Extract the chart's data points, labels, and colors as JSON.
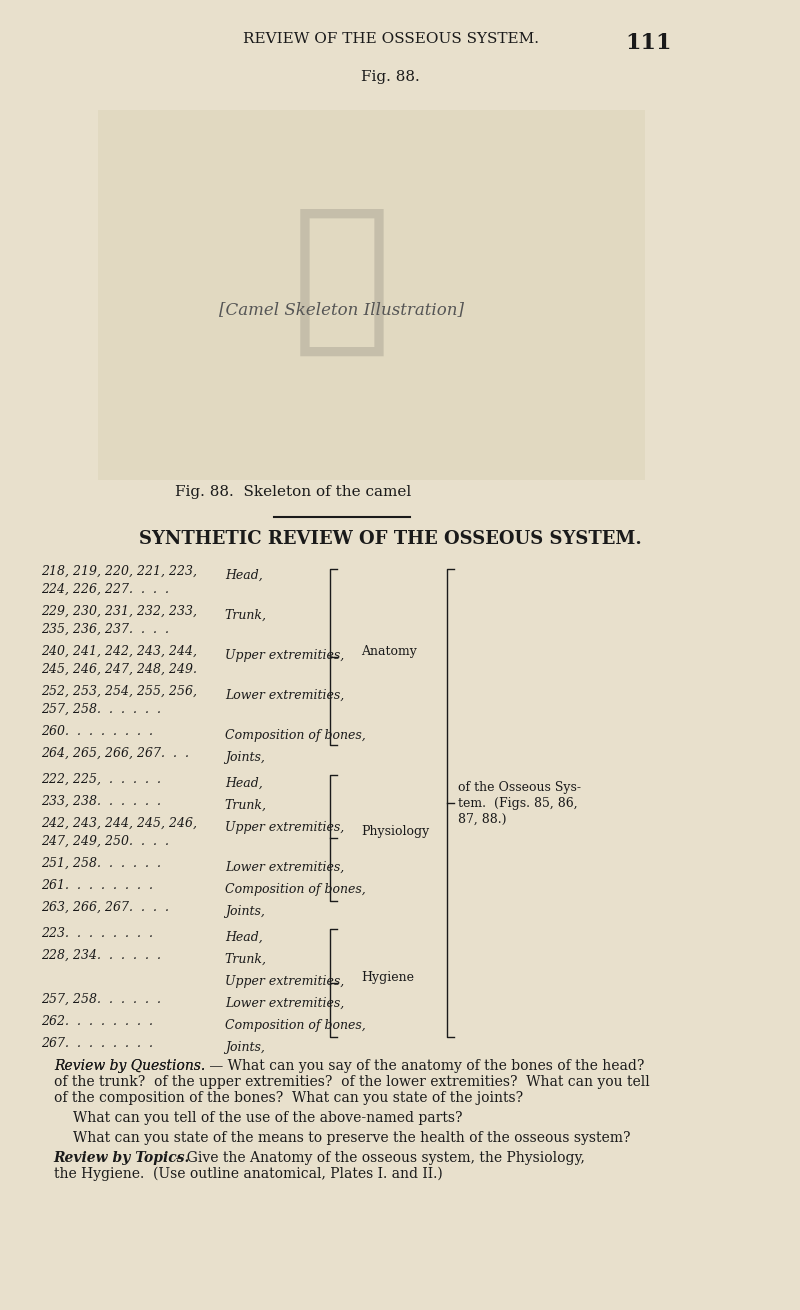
{
  "bg_color": "#e8e0cc",
  "header_text": "REVIEW OF THE OSSEOUS SYSTEM.",
  "page_num": "111",
  "fig_label": "Fig. 88.",
  "fig_caption": "Fig. 88.  Skeleton of the camel",
  "section_title": "SYNTHETIC REVIEW OF THE OSSEOUS SYSTEM.",
  "text_color": "#1a1a1a",
  "anatomy_rows": [
    [
      "218, 219, 220, 221, 223,",
      "224, 226, 227.  .  .  .",
      "Head,"
    ],
    [
      "229, 230, 231, 232, 233,",
      "235, 236, 237.  .  .  .",
      "Trunk,"
    ],
    [
      "240, 241, 242, 243, 244,",
      "245, 246, 247, 248, 249.",
      "Upper extremities,"
    ],
    [
      "252, 253, 254, 255, 256,",
      "257, 258.  .  .  .  .  .",
      "Lower extremities,"
    ],
    [
      "260.  .  .  .  .  .  .  .",
      "",
      "Composition of bones,"
    ],
    [
      "264, 265, 266, 267.  .  .",
      "",
      "Joints,"
    ]
  ],
  "physiology_rows": [
    [
      "222, 225,  .  .  .  .  .",
      "",
      "Head,"
    ],
    [
      "233, 238.  .  .  .  .  .",
      "",
      "Trunk,"
    ],
    [
      "242, 243, 244, 245, 246,",
      "247, 249, 250.  .  .  .",
      "Upper extremities,"
    ],
    [
      "251, 258.  .  .  .  .  .",
      "",
      "Lower extremities,"
    ],
    [
      "261.  .  .  .  .  .  .  .",
      "",
      "Composition of bones,"
    ],
    [
      "263, 266, 267.  .  .  .",
      "",
      "Joints,"
    ]
  ],
  "hygiene_rows": [
    [
      "223.  .  .  .  .  .  .  .",
      "",
      "Head,"
    ],
    [
      "228, 234.  .  .  .  .  .",
      "",
      "Trunk,"
    ],
    [
      "",
      "",
      "Upper extremities,"
    ],
    [
      "257, 258.  .  .  .  .  .",
      "",
      "Lower extremities,"
    ],
    [
      "262.  .  .  .  .  .  .  .",
      "",
      "Composition of bones,"
    ],
    [
      "267.  .  .  .  .  .  .  .",
      "",
      "Joints,"
    ]
  ],
  "right_label1": "of the Osseous Sys-",
  "right_label2": "tem.  (Figs. 85, 86,",
  "right_label3": "87, 88.)",
  "review_q_title": "Review by Questions.",
  "review_q_text": " — What can you say of the anatomy of the bones of the head? of the trunk? of the upper extremities? of the lower extremities?  What can you tell of the composition of the bones?  What can you state of the joints?",
  "review_q2": "What can you tell of the use of the above-named parts?",
  "review_q3": "What can you state of the means to preserve the health of the osseous system?",
  "review_topics_title": "Review by Topics.",
  "review_topics_text": " – Give the Anatomy of the osseous system, the Physiology, the Hygiene.  (Use outline anatomical, Plates I. and II.)"
}
